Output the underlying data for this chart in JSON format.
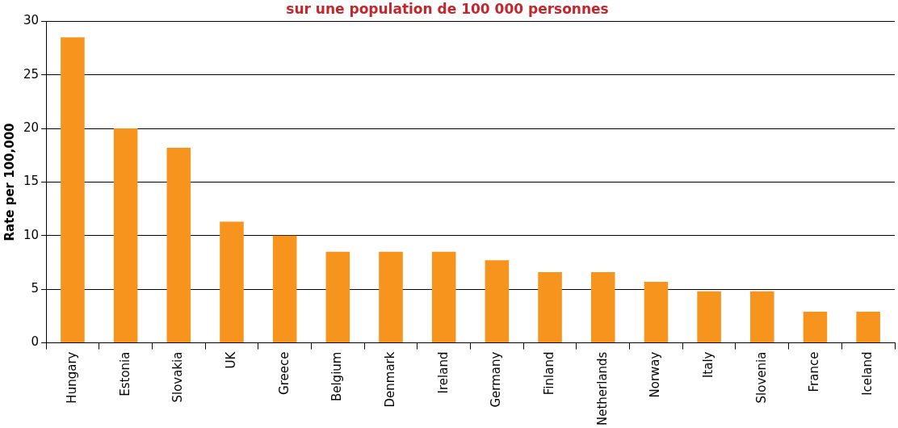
{
  "chart_data": {
    "type": "bar",
    "title": "sur une population de 100 000 personnes",
    "ylabel": "Rate per 100,000",
    "categories": [
      "Hungary",
      "Estonia",
      "Slovakia",
      "UK",
      "Greece",
      "Belgium",
      "Denmark",
      "Ireland",
      "Germany",
      "Finland",
      "Netherlands",
      "Norway",
      "Italy",
      "Slovenia",
      "France",
      "Iceland"
    ],
    "values": [
      28.5,
      20,
      18.2,
      11.3,
      10,
      8.5,
      8.5,
      8.5,
      7.7,
      6.6,
      6.6,
      5.7,
      4.8,
      4.8,
      2.9,
      2.9
    ],
    "color": "#f7941d",
    "ylim": [
      0,
      30
    ],
    "yticks": [
      0,
      5,
      10,
      15,
      20,
      25,
      30
    ],
    "grid": "y"
  }
}
